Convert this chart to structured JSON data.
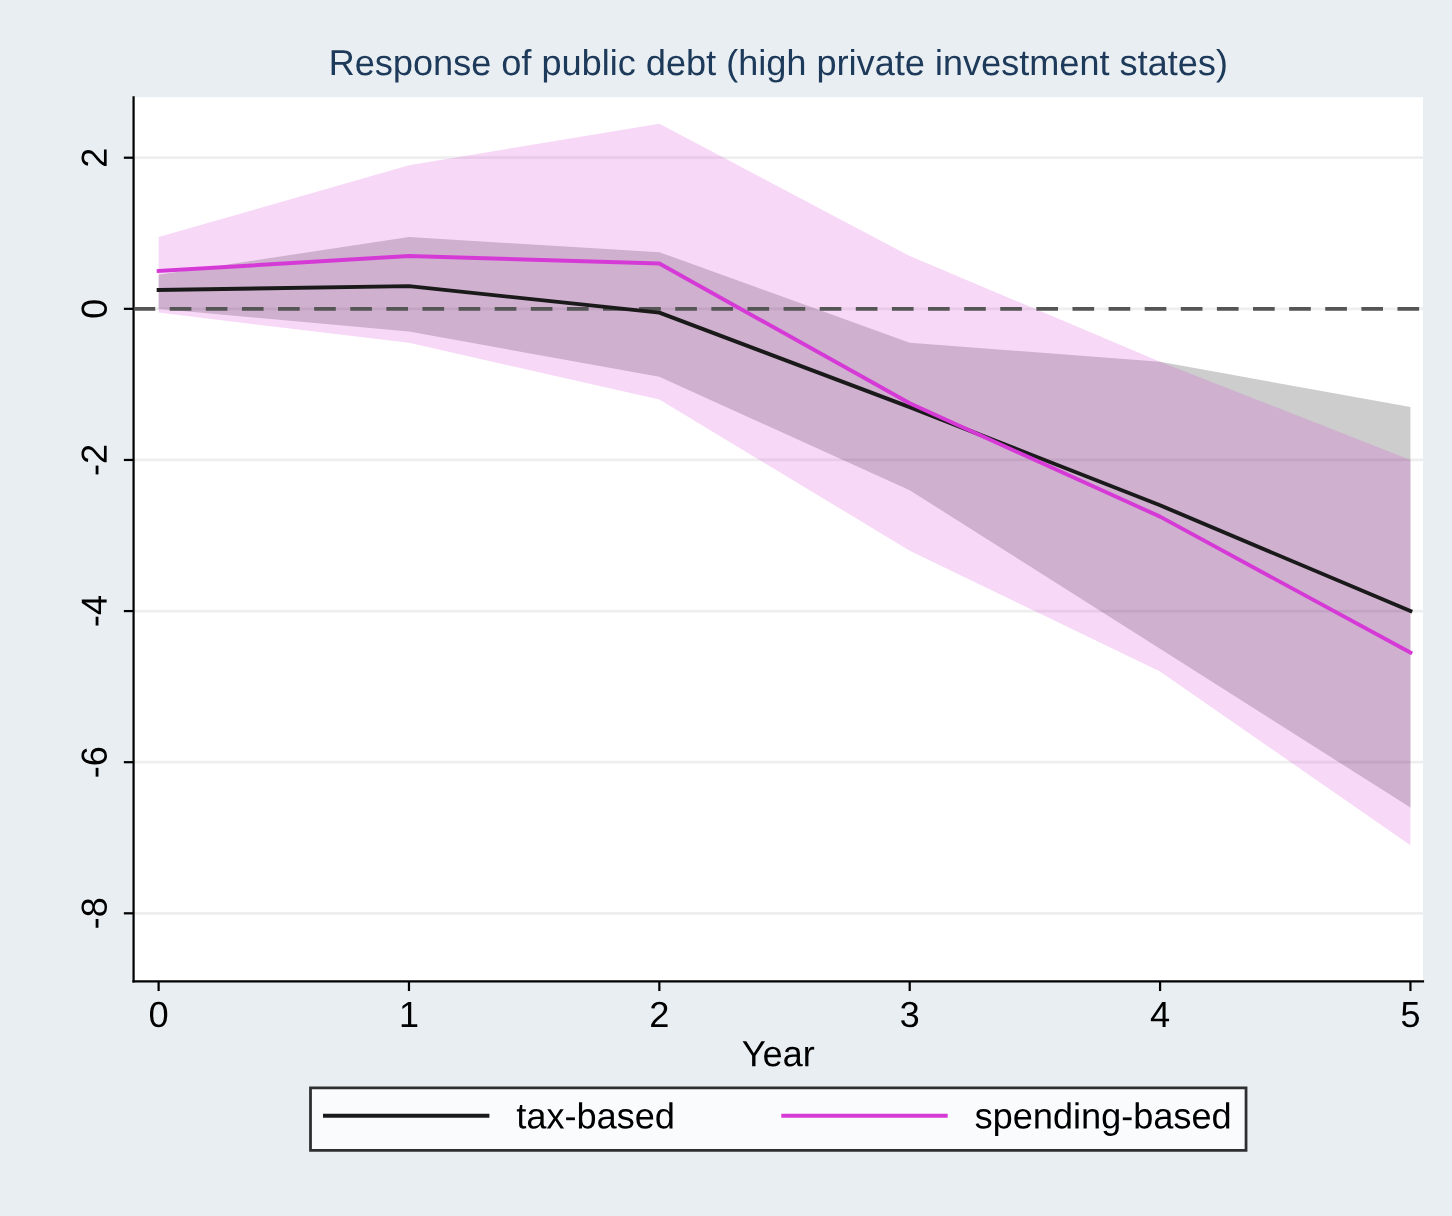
{
  "chart_data": {
    "type": "line",
    "title": "Response of public debt (high private investment states)",
    "xlabel": "Year",
    "x": [
      0,
      1,
      2,
      3,
      4,
      5
    ],
    "series": [
      {
        "name": "tax-based",
        "color": "#1a1a1a",
        "values": [
          0.25,
          0.3,
          -0.05,
          -1.3,
          -2.6,
          -4.0
        ],
        "lower": [
          0.0,
          -0.3,
          -0.9,
          -2.4,
          -4.5,
          -6.6
        ],
        "upper": [
          0.45,
          0.95,
          0.75,
          -0.45,
          -0.7,
          -1.3
        ]
      },
      {
        "name": "spending-based",
        "color": "#d63ad6",
        "values": [
          0.5,
          0.7,
          0.6,
          -1.25,
          -2.75,
          -4.55
        ],
        "lower": [
          -0.05,
          -0.45,
          -1.2,
          -3.2,
          -4.8,
          -7.1
        ],
        "upper": [
          0.95,
          1.9,
          2.45,
          0.7,
          -0.7,
          -2.0
        ]
      }
    ],
    "xlim": [
      -0.1,
      5.05
    ],
    "xticks": [
      0,
      1,
      2,
      3,
      4,
      5
    ],
    "ylim": [
      -8.9,
      2.8
    ],
    "yticks": [
      -8,
      -6,
      -4,
      -2,
      0,
      2
    ],
    "ref_lines": [
      {
        "axis": "y",
        "value": 0,
        "color": "#555555",
        "line_style": "dashed"
      }
    ],
    "grid": "y",
    "legend": "bottom",
    "line_style": "solid"
  }
}
